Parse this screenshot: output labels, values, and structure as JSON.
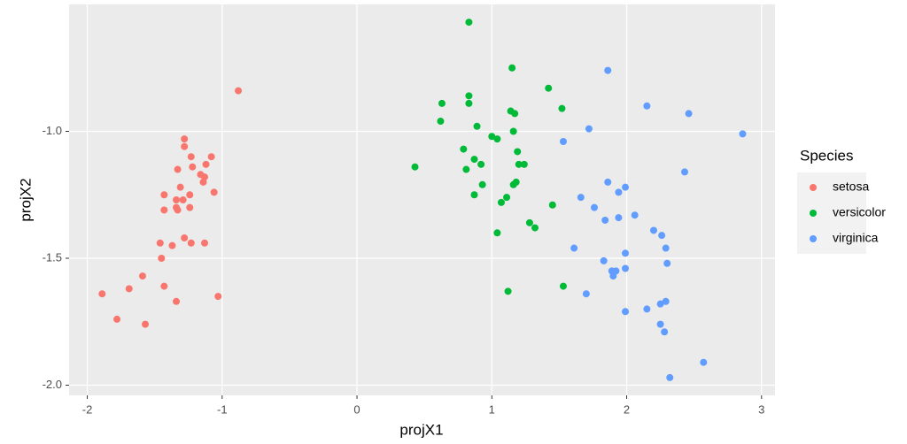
{
  "chart_data": {
    "type": "scatter",
    "x_label": "projX1",
    "y_label": "projX2",
    "legend_title": "Species",
    "legend_position": "right",
    "grid": true,
    "xlim": [
      -2.135,
      3.1
    ],
    "ylim": [
      -2.04,
      -0.5
    ],
    "xticks": [
      -2,
      -1,
      0,
      1,
      2,
      3
    ],
    "yticks": [
      {
        "value": -1.0,
        "label": "-1.0"
      },
      {
        "value": -1.5,
        "label": "-1.5"
      },
      {
        "value": -2.0,
        "label": "-2.0"
      }
    ],
    "series": [
      {
        "name": "setosa",
        "color": "#F8766D",
        "x": [
          -0.88,
          -1.28,
          -1.28,
          -1.23,
          -1.08,
          -1.33,
          -1.22,
          -1.12,
          -1.16,
          -1.13,
          -1.14,
          -1.31,
          -1.06,
          -1.43,
          -1.24,
          -1.34,
          -1.29,
          -1.34,
          -1.43,
          -1.24,
          -1.33,
          -1.28,
          -1.46,
          -1.37,
          -1.23,
          -1.13,
          -1.45,
          -1.59,
          -1.43,
          -1.69,
          -1.89,
          -1.03,
          -1.34,
          -1.78,
          -1.57
        ],
        "y": [
          -0.84,
          -1.03,
          -1.06,
          -1.1,
          -1.1,
          -1.15,
          -1.14,
          -1.13,
          -1.17,
          -1.18,
          -1.2,
          -1.22,
          -1.24,
          -1.25,
          -1.25,
          -1.27,
          -1.27,
          -1.3,
          -1.31,
          -1.3,
          -1.31,
          -1.42,
          -1.44,
          -1.45,
          -1.44,
          -1.44,
          -1.5,
          -1.57,
          -1.61,
          -1.62,
          -1.64,
          -1.65,
          -1.67,
          -1.74,
          -1.76
        ]
      },
      {
        "name": "versicolor",
        "color": "#00BA38",
        "x": [
          0.83,
          1.15,
          0.83,
          0.63,
          0.83,
          1.42,
          1.52,
          1.14,
          1.17,
          0.62,
          0.89,
          1.16,
          1.0,
          1.04,
          0.79,
          1.19,
          0.87,
          0.92,
          0.43,
          1.2,
          1.24,
          0.81,
          1.18,
          1.16,
          0.93,
          1.11,
          0.87,
          1.07,
          1.45,
          1.28,
          1.32,
          1.04,
          1.53,
          1.12
        ],
        "y": [
          -0.57,
          -0.75,
          -0.86,
          -0.89,
          -0.89,
          -0.83,
          -0.91,
          -0.92,
          -0.93,
          -0.96,
          -0.98,
          -1.0,
          -1.02,
          -1.03,
          -1.07,
          -1.08,
          -1.11,
          -1.13,
          -1.14,
          -1.13,
          -1.13,
          -1.15,
          -1.2,
          -1.21,
          -1.21,
          -1.26,
          -1.25,
          -1.28,
          -1.29,
          -1.36,
          -1.38,
          -1.4,
          -1.61,
          -1.63
        ]
      },
      {
        "name": "virginica",
        "color": "#619CFF",
        "x": [
          1.86,
          2.15,
          2.46,
          2.86,
          1.72,
          1.53,
          2.43,
          1.86,
          1.99,
          1.94,
          1.66,
          1.76,
          2.06,
          1.94,
          1.84,
          2.2,
          2.26,
          2.29,
          1.61,
          1.99,
          1.83,
          2.3,
          1.89,
          1.92,
          1.9,
          1.99,
          1.7,
          2.29,
          2.25,
          2.15,
          1.99,
          2.25,
          2.28,
          2.57,
          2.32
        ],
        "y": [
          -0.76,
          -0.9,
          -0.93,
          -1.01,
          -0.99,
          -1.04,
          -1.16,
          -1.2,
          -1.22,
          -1.24,
          -1.26,
          -1.3,
          -1.33,
          -1.34,
          -1.35,
          -1.39,
          -1.41,
          -1.46,
          -1.46,
          -1.48,
          -1.51,
          -1.52,
          -1.55,
          -1.55,
          -1.57,
          -1.54,
          -1.64,
          -1.67,
          -1.68,
          -1.7,
          -1.71,
          -1.76,
          -1.79,
          -1.91,
          -1.97
        ]
      }
    ]
  }
}
